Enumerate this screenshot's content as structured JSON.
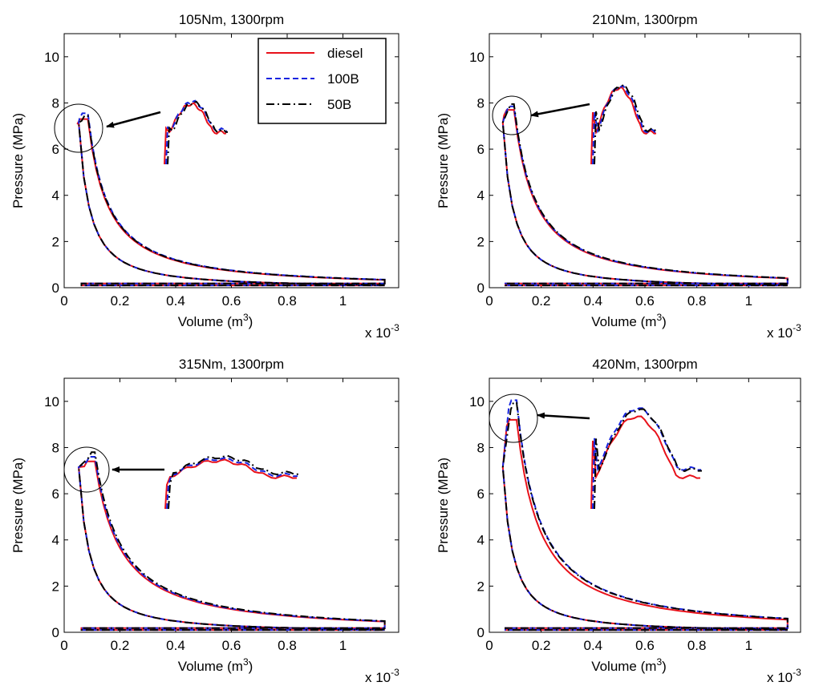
{
  "legend_entries": [
    "diesel",
    "100B",
    "50B"
  ],
  "colors": {
    "diesel": "#e8111a",
    "100B": "#1523e0",
    "50B": "#000000"
  },
  "chart_data": [
    {
      "type": "line",
      "title": "105Nm, 1300rpm",
      "xlabel": "Volume (m3)",
      "xlabel_text": "Volume (m",
      "xlabel_sup": "3",
      "xlabel_close": ")",
      "xscale_text": "x 10",
      "xscale_exp": "-3",
      "ylabel": "Pressure (MPa)",
      "xlim": [
        0,
        1.2
      ],
      "ylim": [
        0,
        11
      ],
      "xticks": [
        "0",
        "0.2",
        "0.4",
        "0.6",
        "0.8",
        "1"
      ],
      "yticks": [
        "0",
        "2",
        "4",
        "6",
        "8",
        "10"
      ],
      "legend": "top-right",
      "peak": {
        "x": 0.065,
        "y": 7.4
      },
      "series": [
        {
          "name": "diesel",
          "style": "solid",
          "peak_p": 7.3,
          "exp_coef": 0.72
        },
        {
          "name": "100B",
          "style": "dashed",
          "peak_p": 7.55,
          "exp_coef": 0.77
        },
        {
          "name": "50B",
          "style": "dashdot",
          "peak_p": 7.45,
          "exp_coef": 0.76
        }
      ]
    },
    {
      "type": "line",
      "title": "210Nm, 1300rpm",
      "xlabel": "Volume (m3)",
      "xlabel_text": "Volume (m",
      "xlabel_sup": "3",
      "xlabel_close": ")",
      "xscale_text": "x 10",
      "xscale_exp": "-3",
      "ylabel": "Pressure (MPa)",
      "xlim": [
        0,
        1.2
      ],
      "ylim": [
        0,
        11
      ],
      "xticks": [
        "0",
        "0.2",
        "0.4",
        "0.6",
        "0.8",
        "1"
      ],
      "yticks": [
        "0",
        "2",
        "4",
        "6",
        "8",
        "10"
      ],
      "peak": {
        "x": 0.075,
        "y": 7.8
      },
      "series": [
        {
          "name": "diesel",
          "style": "solid",
          "peak_p": 7.7,
          "exp_coef": 0.86
        },
        {
          "name": "100B",
          "style": "dashed",
          "peak_p": 7.85,
          "exp_coef": 0.88
        },
        {
          "name": "50B",
          "style": "dashdot",
          "peak_p": 7.95,
          "exp_coef": 0.89
        }
      ]
    },
    {
      "type": "line",
      "title": "315Nm, 1300rpm",
      "xlabel": "Volume (m3)",
      "xlabel_text": "Volume (m",
      "xlabel_sup": "3",
      "xlabel_close": ")",
      "xscale_text": "x 10",
      "xscale_exp": "-3",
      "ylabel": "Pressure (MPa)",
      "xlim": [
        0,
        1.2
      ],
      "ylim": [
        0,
        11
      ],
      "xticks": [
        "0",
        "0.2",
        "0.4",
        "0.6",
        "0.8",
        "1"
      ],
      "yticks": [
        "0",
        "2",
        "4",
        "6",
        "8",
        "10"
      ],
      "peak": {
        "x": 0.09,
        "y": 7.4
      },
      "series": [
        {
          "name": "diesel",
          "style": "solid",
          "peak_p": 7.4,
          "exp_coef": 1.05
        },
        {
          "name": "100B",
          "style": "dashed",
          "peak_p": 7.6,
          "exp_coef": 1.07
        },
        {
          "name": "50B",
          "style": "dashdot",
          "peak_p": 7.8,
          "exp_coef": 1.08
        }
      ]
    },
    {
      "type": "line",
      "title": "420Nm, 1300rpm",
      "xlabel": "Volume (m3)",
      "xlabel_text": "Volume (m",
      "xlabel_sup": "3",
      "xlabel_close": ")",
      "xscale_text": "x 10",
      "xscale_exp": "-3",
      "ylabel": "Pressure (MPa)",
      "xlim": [
        0,
        1.2
      ],
      "ylim": [
        0,
        11
      ],
      "xticks": [
        "0",
        "0.2",
        "0.4",
        "0.6",
        "0.8",
        "1"
      ],
      "yticks": [
        "0",
        "2",
        "4",
        "6",
        "8",
        "10"
      ],
      "peak": {
        "x": 0.085,
        "y": 9.8
      },
      "series": [
        {
          "name": "diesel",
          "style": "solid",
          "peak_p": 9.2,
          "exp_coef": 1.18
        },
        {
          "name": "100B",
          "style": "dashed",
          "peak_p": 10.05,
          "exp_coef": 1.22
        },
        {
          "name": "50B",
          "style": "dashdot",
          "peak_p": 9.95,
          "exp_coef": 1.21
        }
      ]
    }
  ]
}
